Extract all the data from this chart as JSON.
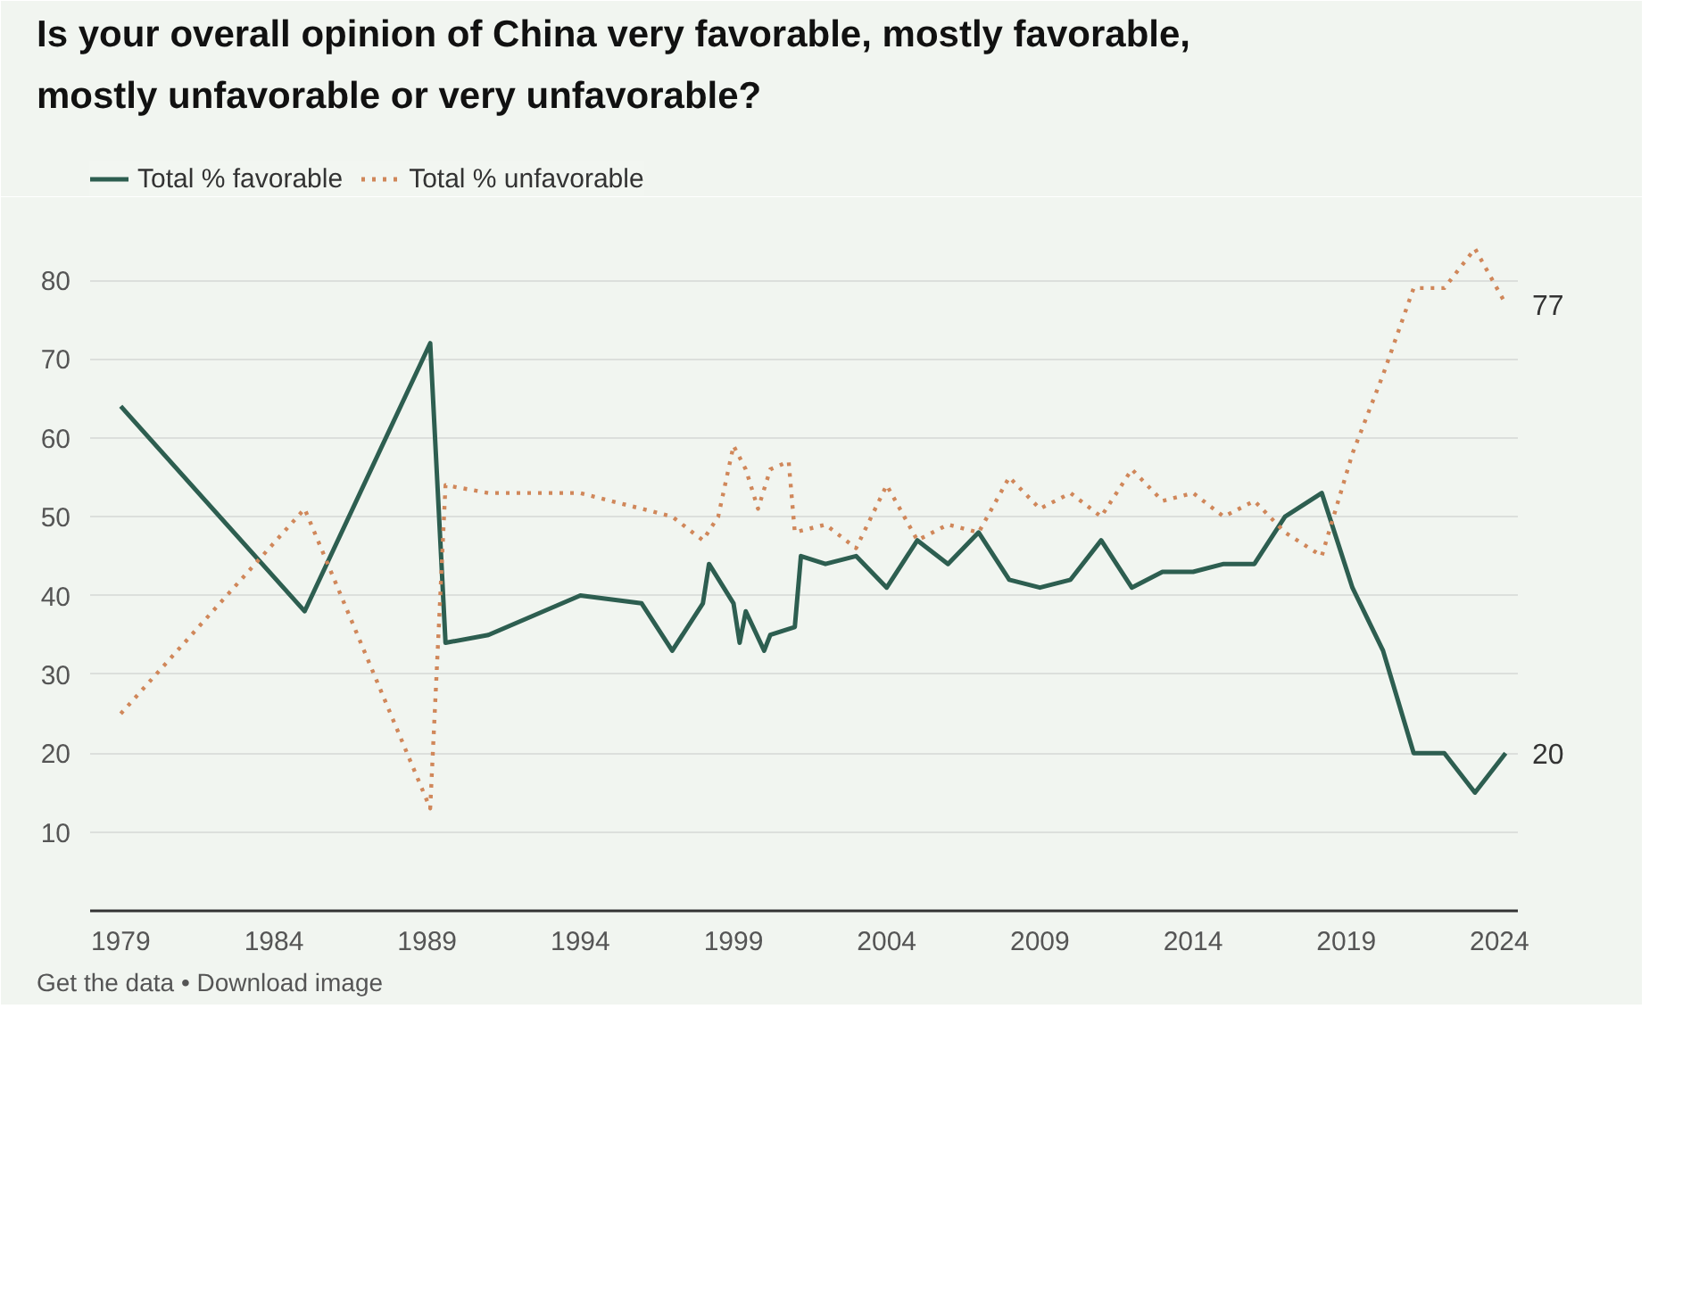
{
  "chart_data": {
    "type": "line",
    "title": "Is your overall opinion of China very favorable, mostly favorable, mostly unfavorable or very unfavorable?",
    "xlim": [
      1978,
      2024.6
    ],
    "xticks": [
      1979,
      1984,
      1989,
      1994,
      1999,
      2004,
      2009,
      2014,
      2019,
      2024
    ],
    "ylim": [
      0,
      86
    ],
    "yticks": [
      10,
      20,
      30,
      40,
      50,
      60,
      70,
      80
    ],
    "grid": "y",
    "legend": "top left",
    "marker": "none",
    "series": [
      {
        "name": "Total % favorable",
        "color": "#2d5e50",
        "line_style": "solid",
        "x": [
          1979,
          1985,
          1989.1,
          1989.6,
          1991,
          1994,
          1996,
          1997,
          1998,
          1998.2,
          1999,
          1999.2,
          1999.4,
          2000,
          2000.2,
          2001,
          2001.2,
          2002,
          2003,
          2004,
          2005,
          2006,
          2007,
          2008,
          2009,
          2010,
          2011,
          2012,
          2013,
          2014,
          2015,
          2016,
          2017,
          2018.2,
          2019.2,
          2020.2,
          2021.2,
          2022.2,
          2023.2,
          2024.2
        ],
        "values": [
          64,
          38,
          72,
          34,
          35,
          40,
          39,
          33,
          39,
          44,
          39,
          34,
          38,
          33,
          35,
          36,
          45,
          44,
          45,
          41,
          47,
          44,
          48,
          42,
          41,
          42,
          47,
          41,
          43,
          43,
          44,
          44,
          50,
          53,
          41,
          33,
          20,
          20,
          15,
          20
        ],
        "value_labels": [
          null,
          null,
          null,
          null,
          null,
          null,
          null,
          null,
          null,
          null,
          null,
          null,
          null,
          null,
          null,
          null,
          null,
          null,
          null,
          null,
          null,
          null,
          null,
          null,
          null,
          null,
          null,
          null,
          null,
          null,
          null,
          null,
          null,
          null,
          null,
          null,
          null,
          null,
          null,
          "20"
        ]
      },
      {
        "name": "Total % unfavorable",
        "color": "#d0875a",
        "line_style": "dotted",
        "x": [
          1979,
          1985,
          1989.1,
          1989.6,
          1991,
          1994,
          1996,
          1997,
          1998,
          1998.5,
          1999,
          1999.4,
          1999.8,
          2000.2,
          2000.8,
          2001,
          2002,
          2003,
          2004,
          2005,
          2006,
          2007,
          2008,
          2009,
          2010,
          2011,
          2012,
          2013,
          2014,
          2015,
          2016,
          2017,
          2018.2,
          2019.2,
          2020.2,
          2021.2,
          2022.2,
          2023.2,
          2024.2
        ],
        "values": [
          25,
          51,
          13,
          54,
          53,
          53,
          51,
          50,
          47,
          50,
          59,
          56,
          51,
          56,
          57,
          48,
          49,
          46,
          54,
          47,
          49,
          48,
          55,
          51,
          53,
          50,
          56,
          52,
          53,
          50,
          52,
          48,
          45,
          58,
          68,
          79,
          79,
          84,
          77
        ],
        "value_labels": [
          null,
          null,
          null,
          null,
          null,
          null,
          null,
          null,
          null,
          null,
          null,
          null,
          null,
          null,
          null,
          null,
          null,
          null,
          null,
          null,
          null,
          null,
          null,
          null,
          null,
          null,
          null,
          null,
          null,
          null,
          null,
          null,
          null,
          null,
          null,
          null,
          null,
          null,
          "77"
        ]
      }
    ],
    "annotations": [
      "Get the data • Download image"
    ]
  }
}
